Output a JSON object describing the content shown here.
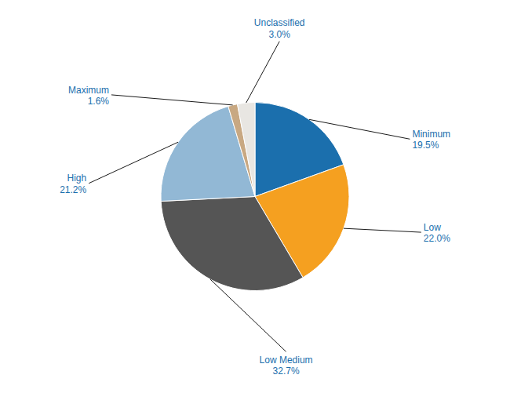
{
  "chart_data": {
    "type": "pie",
    "categories": [
      "Minimum",
      "Low",
      "Low Medium",
      "High",
      "Maximum",
      "Unclassified"
    ],
    "values": [
      19.5,
      22.0,
      32.7,
      21.2,
      1.6,
      3.0
    ],
    "value_labels": [
      "19.5%",
      "22.0%",
      "32.7%",
      "21.2%",
      "1.6%",
      "3.0%"
    ],
    "colors": [
      "#1B6FAD",
      "#F5A020",
      "#555555",
      "#92B8D5",
      "#C8A882",
      "#E8E6E2"
    ],
    "data_labels": true
  }
}
